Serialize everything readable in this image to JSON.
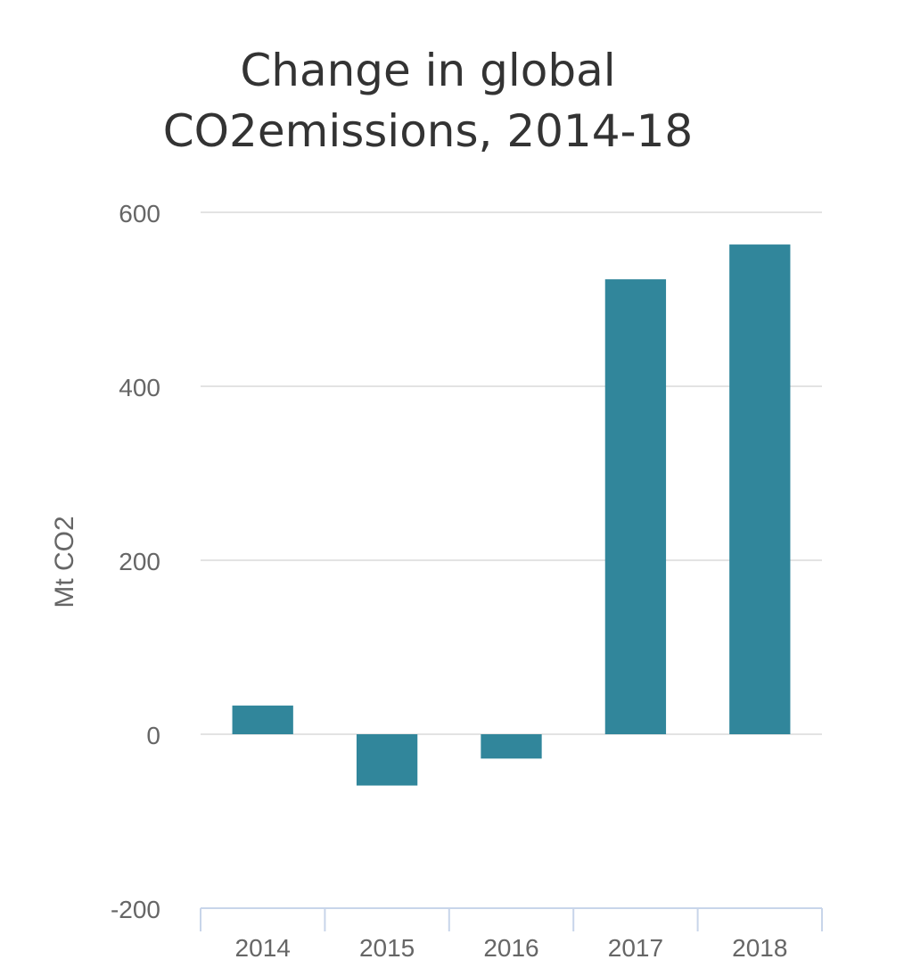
{
  "chart_data": {
    "type": "bar",
    "title_lines": [
      "Change in global",
      "CO2emissions, 2014-18"
    ],
    "xlabel": "",
    "ylabel": "Mt CO2",
    "categories": [
      "2014",
      "2015",
      "2016",
      "2017",
      "2018"
    ],
    "values": [
      33,
      -59,
      -28,
      523,
      563
    ],
    "ylim": [
      -200,
      600
    ],
    "yticks": [
      -200,
      0,
      200,
      400,
      600
    ],
    "ytick_labels": [
      "-200",
      "0",
      "200",
      "400",
      "600"
    ],
    "grid": true,
    "legend": "none",
    "colors": {
      "bar": "#31869b",
      "grid": "#e3e3e3",
      "axis": "#c8d5ea",
      "tick_text": "#666666",
      "title": "#333333"
    }
  }
}
